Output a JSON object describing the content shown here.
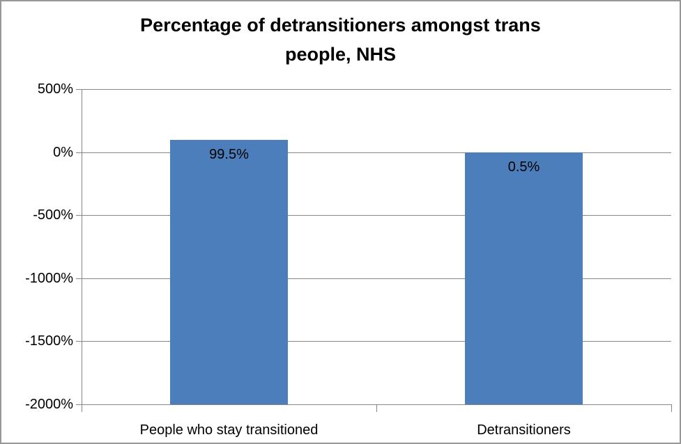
{
  "chart_data": {
    "type": "bar",
    "title": "Percentage of detransitioners amongst trans people, NHS",
    "title_lines": [
      "Percentage of detransitioners amongst trans",
      "people, NHS"
    ],
    "categories": [
      "People who stay transitioned",
      "Detransitioners"
    ],
    "values": [
      99.5,
      0.5
    ],
    "data_labels": [
      "99.5%",
      "0.5%"
    ],
    "xlabel": "",
    "ylabel": "",
    "ylim": [
      -2000,
      500
    ],
    "ytick_step": 500,
    "ytick_labels": [
      "500%",
      "0%",
      "-500%",
      "-1000%",
      "-1500%",
      "-2000%"
    ],
    "grid": true,
    "legend_position": "none",
    "bars_drawn_from_axis_min": true
  },
  "colors": {
    "bar_fill": "#4D7EBC",
    "axis_and_grid": "#868686",
    "chart_border": "#979797",
    "background": "#FFFFFF",
    "text": "#000000"
  }
}
